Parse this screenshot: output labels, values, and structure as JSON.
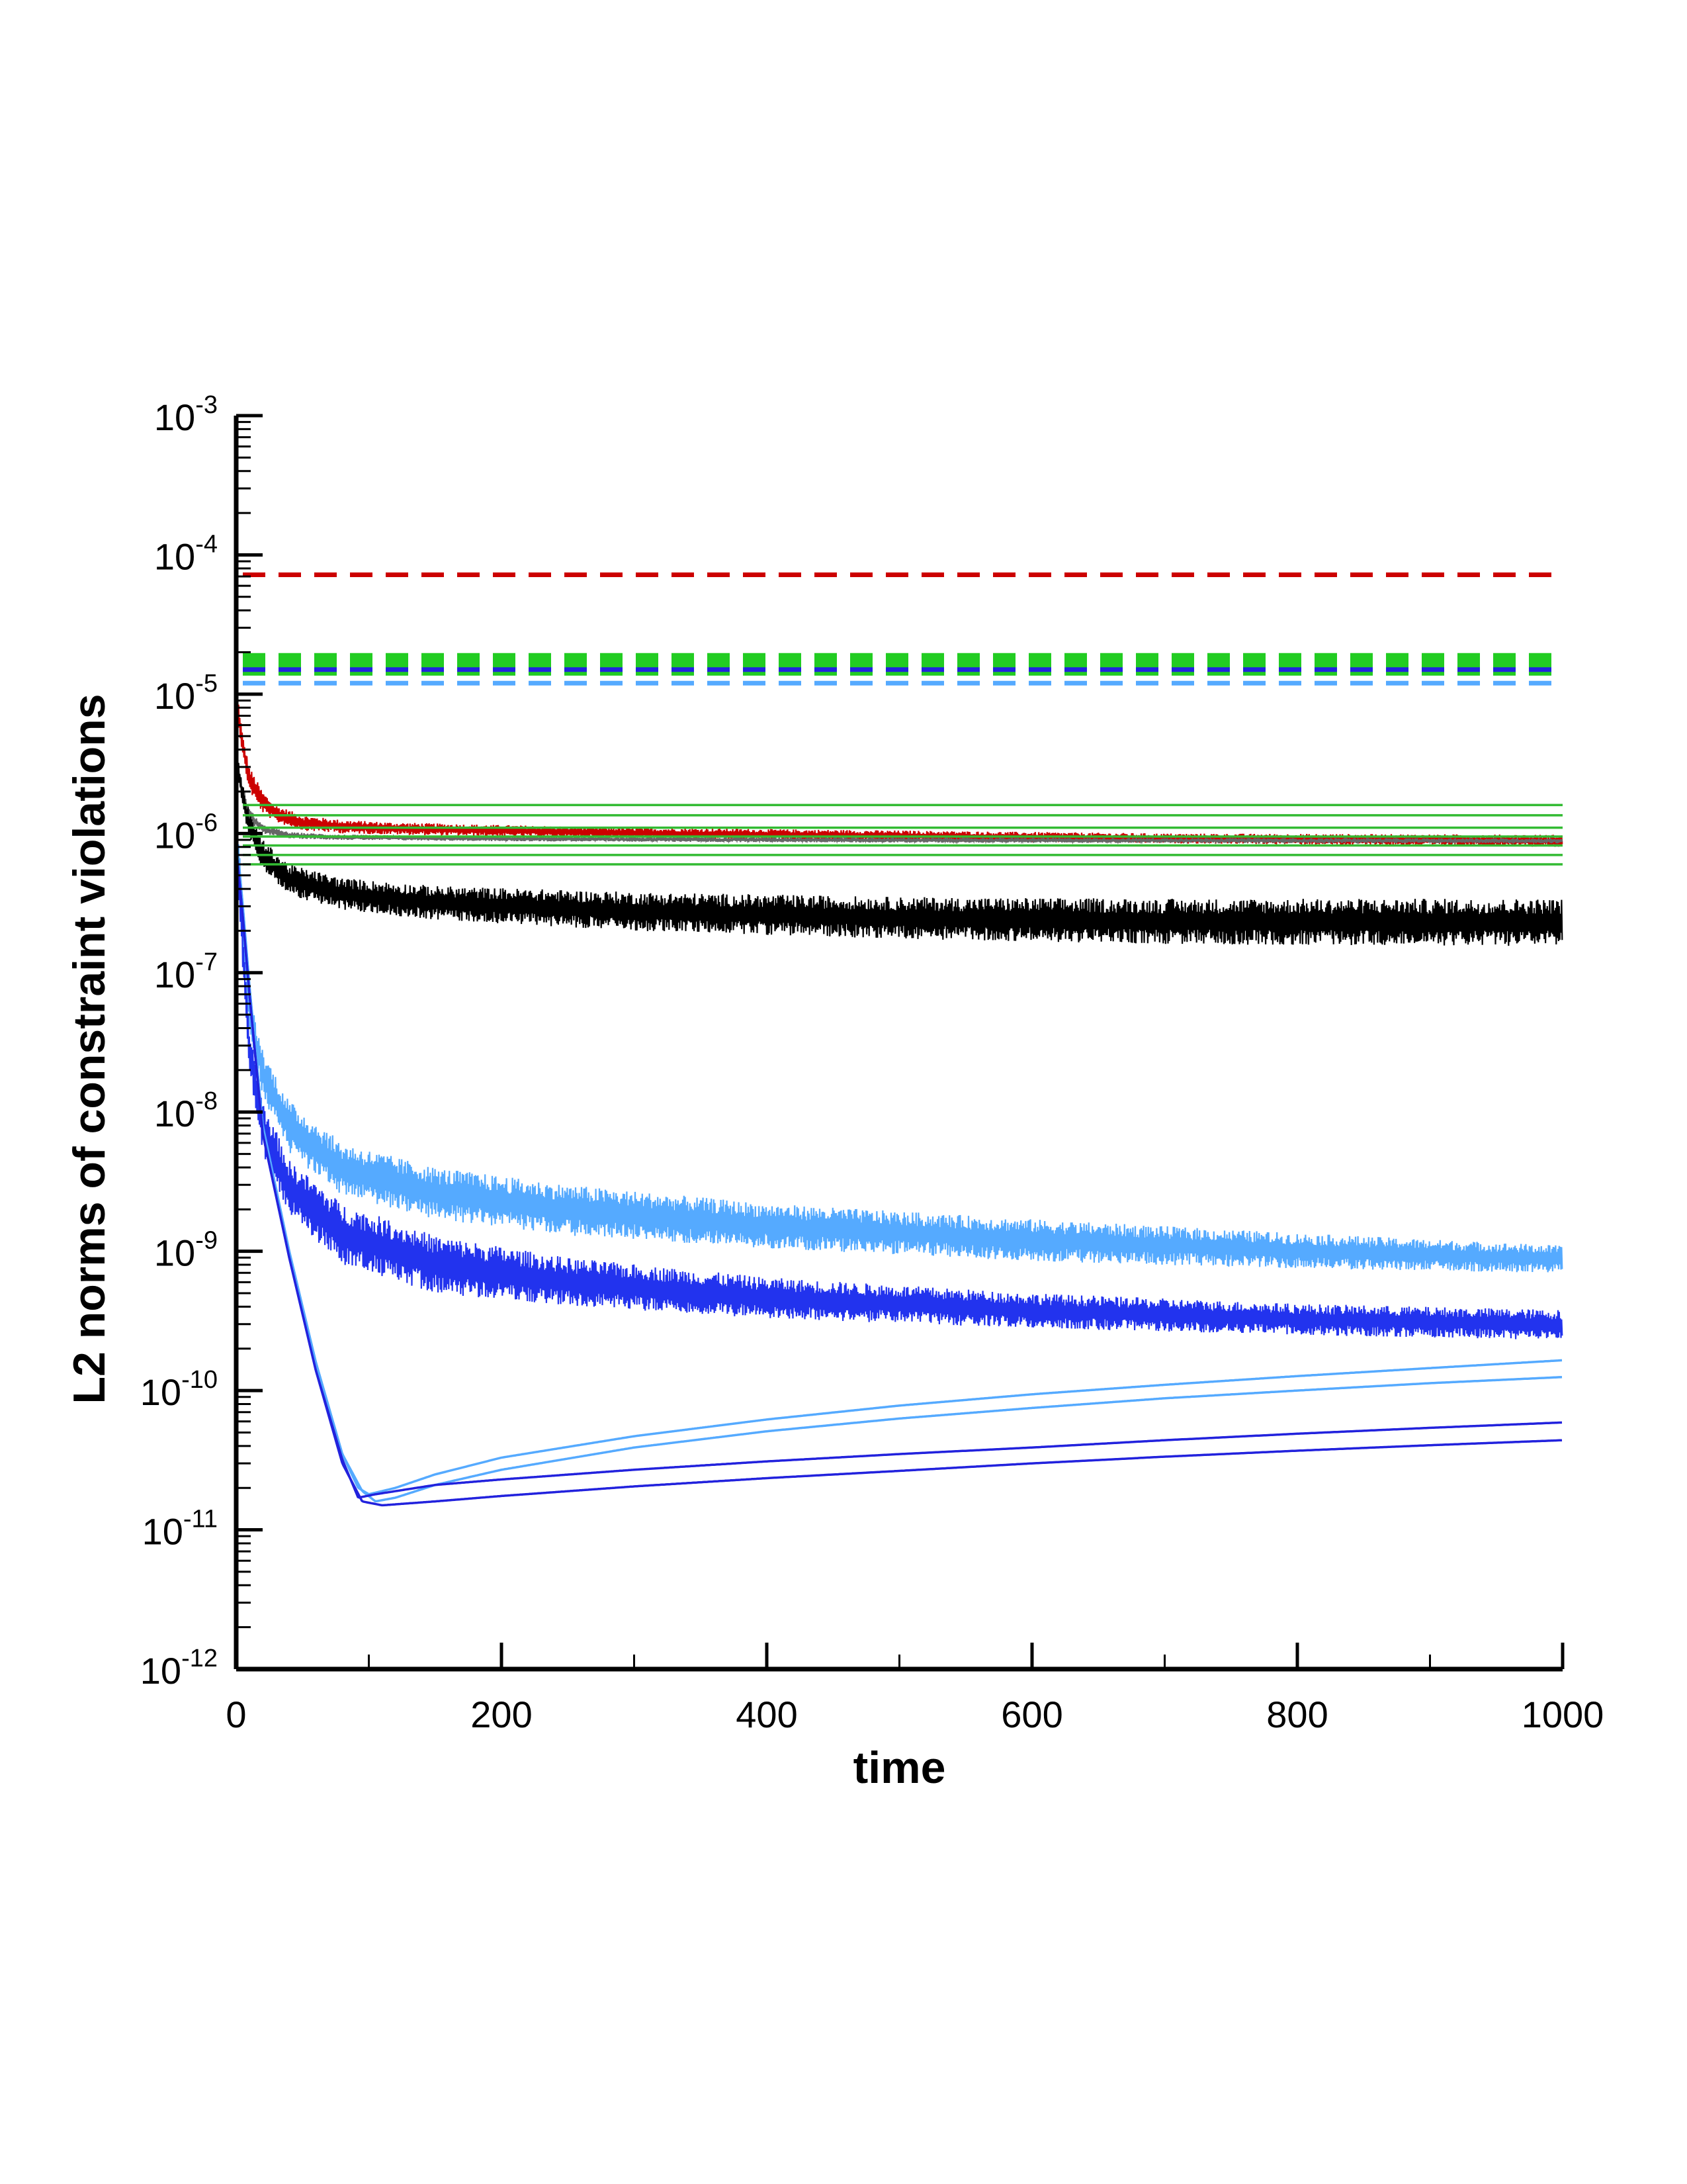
{
  "chart_data": {
    "type": "line",
    "title": "",
    "xlabel": "time",
    "ylabel": "L2 norms of constraint violations",
    "xlim": [
      0,
      1000
    ],
    "ylim": [
      1e-12,
      0.001
    ],
    "yscale": "log",
    "x_ticks": [
      0,
      200,
      400,
      600,
      800,
      1000
    ],
    "x_tick_labels": [
      "0",
      "200",
      "400",
      "600",
      "800",
      "1000"
    ],
    "y_ticks": [
      1e-12,
      1e-11,
      1e-10,
      1e-09,
      1e-08,
      1e-07,
      1e-06,
      1e-05,
      0.0001,
      0.001
    ],
    "y_tick_labels": [
      {
        "base": "10",
        "exp": "-12"
      },
      {
        "base": "10",
        "exp": "-11"
      },
      {
        "base": "10",
        "exp": "-10"
      },
      {
        "base": "10",
        "exp": "-9"
      },
      {
        "base": "10",
        "exp": "-8"
      },
      {
        "base": "10",
        "exp": "-7"
      },
      {
        "base": "10",
        "exp": "-6"
      },
      {
        "base": "10",
        "exp": "-5"
      },
      {
        "base": "10",
        "exp": "-4"
      },
      {
        "base": "10",
        "exp": "-3"
      }
    ],
    "grid": false,
    "legend": "none",
    "series": [
      {
        "name": "red-dashed",
        "color": "#cc0000",
        "style": "dashed",
        "x": [
          5,
          1000
        ],
        "y": [
          7.2e-05,
          7.2e-05
        ]
      },
      {
        "name": "green-dashed-1",
        "color": "#22cc22",
        "style": "dashed",
        "x": [
          5,
          1000
        ],
        "y": [
          1.85e-05,
          1.85e-05
        ]
      },
      {
        "name": "green-dashed-2",
        "color": "#22cc22",
        "style": "dashed",
        "x": [
          5,
          1000
        ],
        "y": [
          1.65e-05,
          1.65e-05
        ]
      },
      {
        "name": "green-dashed-3",
        "color": "#22cc22",
        "style": "dashed",
        "x": [
          5,
          1000
        ],
        "y": [
          1.45e-05,
          1.45e-05
        ]
      },
      {
        "name": "blue-dashed",
        "color": "#2222dd",
        "style": "dashed",
        "x": [
          5,
          1000
        ],
        "y": [
          1.5e-05,
          1.5e-05
        ]
      },
      {
        "name": "lightblue-dashed",
        "color": "#55aaff",
        "style": "dashed",
        "x": [
          5,
          1000
        ],
        "y": [
          1.2e-05,
          1.2e-05
        ]
      },
      {
        "name": "green-flat-1",
        "color": "#33bb33",
        "style": "solid",
        "x": [
          5,
          1000
        ],
        "y": [
          1.6e-06,
          1.6e-06
        ]
      },
      {
        "name": "green-flat-2",
        "color": "#33bb33",
        "style": "solid",
        "x": [
          5,
          1000
        ],
        "y": [
          1.35e-06,
          1.35e-06
        ]
      },
      {
        "name": "green-flat-3",
        "color": "#33bb33",
        "style": "solid",
        "x": [
          5,
          1000
        ],
        "y": [
          1.1e-06,
          1.1e-06
        ]
      },
      {
        "name": "green-flat-4",
        "color": "#33bb33",
        "style": "solid",
        "x": [
          5,
          1000
        ],
        "y": [
          9.5e-07,
          9.5e-07
        ]
      },
      {
        "name": "green-flat-5",
        "color": "#33bb33",
        "style": "solid",
        "x": [
          5,
          1000
        ],
        "y": [
          8.2e-07,
          8.2e-07
        ]
      },
      {
        "name": "green-flat-6",
        "color": "#33bb33",
        "style": "solid",
        "x": [
          5,
          1000
        ],
        "y": [
          7e-07,
          7e-07
        ]
      },
      {
        "name": "green-flat-7",
        "color": "#33bb33",
        "style": "solid",
        "x": [
          5,
          1000
        ],
        "y": [
          6e-07,
          6e-07
        ]
      },
      {
        "name": "red-band",
        "color": "#cc0000",
        "style": "band",
        "x": [
          0,
          5,
          10,
          20,
          30,
          50,
          80,
          120,
          200,
          300,
          500,
          700,
          1000
        ],
        "y_low": [
          8e-06,
          3.5e-06,
          2e-06,
          1.4e-06,
          1.2e-06,
          1.05e-06,
          1e-06,
          9.8e-07,
          9.5e-07,
          9.2e-07,
          8.8e-07,
          8.5e-07,
          8e-07
        ],
        "y_high": [
          1.2e-05,
          5e-06,
          3e-06,
          2e-06,
          1.6e-06,
          1.35e-06,
          1.25e-06,
          1.2e-06,
          1.15e-06,
          1.1e-06,
          1.05e-06,
          1e-06,
          9.8e-07
        ]
      },
      {
        "name": "gray-band",
        "color": "#666666",
        "style": "band",
        "x": [
          0,
          5,
          10,
          20,
          40,
          80,
          200,
          500,
          1000
        ],
        "y_low": [
          3e-06,
          1.6e-06,
          1.2e-06,
          1e-06,
          9.2e-07,
          9e-07,
          8.8e-07,
          8.6e-07,
          8.5e-07
        ],
        "y_high": [
          4e-06,
          2.2e-06,
          1.5e-06,
          1.15e-06,
          1.02e-06,
          9.8e-07,
          9.5e-07,
          9.3e-07,
          9.2e-07
        ]
      },
      {
        "name": "black-band",
        "color": "#000000",
        "style": "band",
        "x": [
          0,
          5,
          10,
          20,
          40,
          80,
          150,
          300,
          500,
          700,
          1000
        ],
        "y_low": [
          3e-06,
          1.5e-06,
          9e-07,
          5.5e-07,
          3.6e-07,
          2.8e-07,
          2.4e-07,
          2e-07,
          1.75e-07,
          1.6e-07,
          1.55e-07
        ],
        "y_high": [
          4e-06,
          2.3e-06,
          1.4e-06,
          9e-07,
          6e-07,
          4.8e-07,
          4.2e-07,
          3.8e-07,
          3.5e-07,
          3.4e-07,
          3.4e-07
        ]
      },
      {
        "name": "lightblue-band",
        "color": "#55aaff",
        "style": "band",
        "x": [
          0,
          5,
          10,
          20,
          40,
          80,
          150,
          250,
          400,
          600,
          800,
          1000
        ],
        "y_low": [
          1e-06,
          1.5e-07,
          4e-08,
          1.3e-08,
          5e-09,
          2.5e-09,
          1.7e-09,
          1.3e-09,
          1.05e-09,
          8.5e-10,
          7.5e-10,
          7e-10
        ],
        "y_high": [
          2e-06,
          3e-07,
          7e-08,
          2.8e-08,
          1.2e-08,
          6e-09,
          4e-09,
          3e-09,
          2.2e-09,
          1.7e-09,
          1.35e-09,
          1.1e-09
        ]
      },
      {
        "name": "blue-band",
        "color": "#2233ee",
        "style": "band",
        "x": [
          0,
          5,
          10,
          20,
          40,
          80,
          150,
          250,
          400,
          600,
          800,
          1000
        ],
        "y_low": [
          8e-07,
          1e-07,
          2e-08,
          5e-09,
          1.8e-09,
          8e-10,
          5e-10,
          4e-10,
          3.3e-10,
          2.8e-10,
          2.5e-10,
          2.3e-10
        ],
        "y_high": [
          1.5e-06,
          2e-07,
          4e-08,
          1.2e-08,
          4.5e-09,
          2.2e-09,
          1.3e-09,
          9e-10,
          6.5e-10,
          5e-10,
          4.2e-10,
          3.8e-10
        ]
      },
      {
        "name": "lightblue-line-1",
        "color": "#55aaff",
        "style": "solid",
        "x": [
          0,
          5,
          10,
          20,
          40,
          60,
          80,
          92,
          100,
          120,
          150,
          200,
          300,
          400,
          500,
          600,
          700,
          800,
          900,
          1000
        ],
        "y": [
          1e-06,
          3e-07,
          8e-08,
          8e-09,
          1e-09,
          1.6e-10,
          3.5e-11,
          2e-11,
          1.8e-11,
          2e-11,
          2.5e-11,
          3.3e-11,
          4.7e-11,
          6.2e-11,
          7.8e-11,
          9.4e-11,
          1.1e-10,
          1.27e-10,
          1.45e-10,
          1.65e-10
        ]
      },
      {
        "name": "lightblue-line-2",
        "color": "#55aaff",
        "style": "solid",
        "x": [
          0,
          5,
          10,
          20,
          40,
          60,
          80,
          95,
          105,
          120,
          150,
          200,
          300,
          400,
          500,
          600,
          700,
          800,
          900,
          1000
        ],
        "y": [
          1e-06,
          3e-07,
          8e-08,
          8e-09,
          1e-09,
          1.6e-10,
          3.5e-11,
          1.9e-11,
          1.6e-11,
          1.7e-11,
          2.1e-11,
          2.7e-11,
          3.9e-11,
          5.1e-11,
          6.3e-11,
          7.5e-11,
          8.8e-11,
          1e-10,
          1.13e-10,
          1.25e-10
        ]
      },
      {
        "name": "blue-line-1",
        "color": "#2222dd",
        "style": "solid",
        "x": [
          0,
          5,
          10,
          20,
          40,
          60,
          80,
          92,
          105,
          150,
          200,
          300,
          400,
          500,
          600,
          700,
          800,
          900,
          1000
        ],
        "y": [
          8e-07,
          2.5e-07,
          7e-08,
          7e-09,
          9e-10,
          1.4e-10,
          3.2e-11,
          1.7e-11,
          1.8e-11,
          2.1e-11,
          2.3e-11,
          2.7e-11,
          3.1e-11,
          3.5e-11,
          3.9e-11,
          4.4e-11,
          4.9e-11,
          5.4e-11,
          5.9e-11
        ]
      },
      {
        "name": "blue-line-2",
        "color": "#2222dd",
        "style": "solid",
        "x": [
          0,
          5,
          10,
          20,
          40,
          60,
          80,
          95,
          110,
          150,
          200,
          300,
          400,
          500,
          600,
          700,
          800,
          900,
          1000
        ],
        "y": [
          8e-07,
          2.5e-07,
          7e-08,
          7e-09,
          9e-10,
          1.4e-10,
          3e-11,
          1.6e-11,
          1.5e-11,
          1.6e-11,
          1.75e-11,
          2.05e-11,
          2.35e-11,
          2.65e-11,
          3e-11,
          3.35e-11,
          3.7e-11,
          4.05e-11,
          4.4e-11
        ]
      }
    ]
  }
}
